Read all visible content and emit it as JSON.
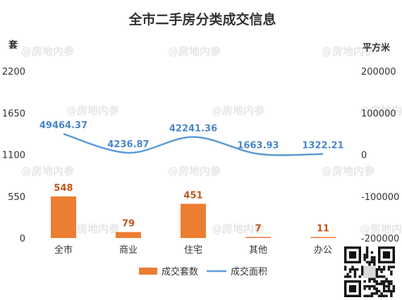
{
  "watermark": "@房地内参",
  "chart_data": {
    "type": "bar+line",
    "title": "全市二手房分类成交信息",
    "y_left_unit": "套",
    "y_right_unit": "平方米",
    "categories": [
      "全市",
      "商业",
      "住宅",
      "其他",
      "办公"
    ],
    "y_left_ticks": [
      "0",
      "550",
      "1100",
      "1650",
      "2200"
    ],
    "y_right_ticks": [
      "-200000",
      "-100000",
      "0",
      "100000",
      "200000"
    ],
    "y_left_range": [
      0,
      2200
    ],
    "y_right_range": [
      -200000,
      200000
    ],
    "grid": false,
    "legend_position": "bottom",
    "series": [
      {
        "name": "成交套数",
        "type": "bar",
        "axis": "left",
        "color": "#ed7d31",
        "values": [
          548,
          79,
          451,
          7,
          11
        ],
        "labels": [
          "548",
          "79",
          "451",
          "7",
          "11"
        ]
      },
      {
        "name": "成交面积",
        "type": "line",
        "axis": "right",
        "color": "#5b9bd5",
        "values": [
          49464.37,
          4236.87,
          42241.36,
          1663.93,
          1322.21
        ],
        "labels": [
          "49464.37",
          "4236.87",
          "42241.36",
          "1663.93",
          "1322.21"
        ]
      }
    ]
  }
}
